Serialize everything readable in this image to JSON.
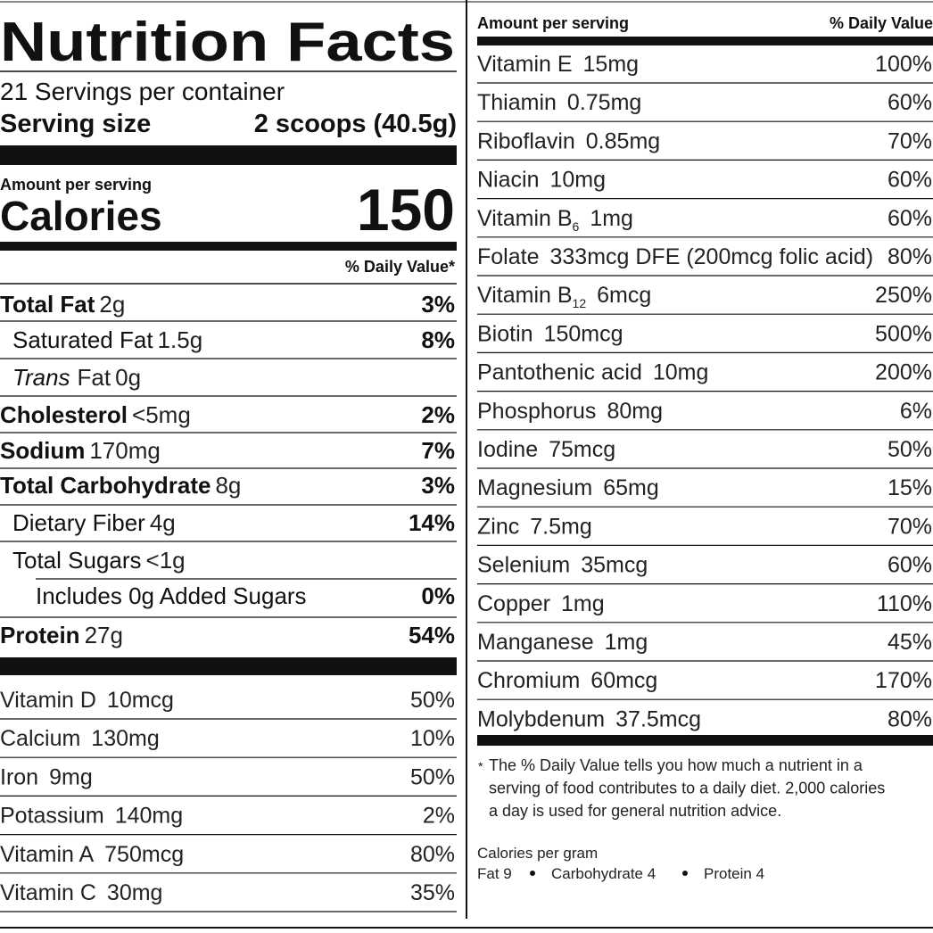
{
  "header": {
    "title": "Nutrition Facts",
    "servings": "21 Servings per container",
    "serving_size_label": "Serving size",
    "serving_size_value": "2 scoops (40.5g)",
    "amount_label": "Amount per serving",
    "calories_label": "Calories",
    "calories_value": "150",
    "dv_header": "% Daily Value*"
  },
  "nutrients": [
    {
      "name": "Total Fat",
      "amount": "2g",
      "dv": "3%"
    },
    {
      "name": "Saturated Fat",
      "amount": "1.5g",
      "dv": "8%"
    },
    {
      "name": "Trans",
      "name_rest": "Fat",
      "amount": "0g"
    },
    {
      "name": "Cholesterol",
      "amount": "<5mg",
      "dv": "2%"
    },
    {
      "name": "Sodium",
      "amount": "170mg",
      "dv": "7%"
    },
    {
      "name": "Total Carbohydrate",
      "amount": "8g",
      "dv": "3%"
    },
    {
      "name": "Dietary Fiber",
      "amount": "4g",
      "dv": "14%"
    },
    {
      "name": "Total Sugars",
      "amount": "<1g"
    },
    {
      "name": "Includes 0g Added Sugars",
      "dv": "0%"
    },
    {
      "name": "Protein",
      "amount": "27g",
      "dv": "54%"
    }
  ],
  "vitamins_left": [
    {
      "name": "Vitamin D",
      "amount": "10mcg",
      "dv": "50%"
    },
    {
      "name": "Calcium",
      "amount": "130mg",
      "dv": "10%"
    },
    {
      "name": "Iron",
      "amount": "9mg",
      "dv": "50%"
    },
    {
      "name": "Potassium",
      "amount": "140mg",
      "dv": "2%"
    },
    {
      "name": "Vitamin A",
      "amount": "750mcg",
      "dv": "80%"
    },
    {
      "name": "Vitamin C",
      "amount": "30mg",
      "dv": "35%"
    }
  ],
  "right_header": {
    "amount_label": "Amount per serving",
    "dv_label": "% Daily Value"
  },
  "vitamins_right": [
    {
      "name": "Vitamin E",
      "amount": "15mg",
      "dv": "100%"
    },
    {
      "name": "Thiamin",
      "amount": "0.75mg",
      "dv": "60%"
    },
    {
      "name": "Riboflavin",
      "amount": "0.85mg",
      "dv": "70%"
    },
    {
      "name": "Niacin",
      "amount": "10mg",
      "dv": "60%"
    },
    {
      "name": "Vitamin B",
      "subscript": "6",
      "amount": "1mg",
      "dv": "60%"
    },
    {
      "name": "Folate",
      "amount": "333mcg DFE (200mcg folic acid)",
      "dv": "80%"
    },
    {
      "name": "Vitamin B",
      "subscript": "12",
      "amount": "6mcg",
      "dv": "250%"
    },
    {
      "name": "Biotin",
      "amount": "150mcg",
      "dv": "500%"
    },
    {
      "name": "Pantothenic acid",
      "amount": "10mg",
      "dv": "200%"
    },
    {
      "name": "Phosphorus",
      "amount": "80mg",
      "dv": "6%"
    },
    {
      "name": "Iodine",
      "amount": "75mcg",
      "dv": "50%"
    },
    {
      "name": "Magnesium",
      "amount": "65mg",
      "dv": "15%"
    },
    {
      "name": "Zinc",
      "amount": "7.5mg",
      "dv": "70%"
    },
    {
      "name": "Selenium",
      "amount": "35mcg",
      "dv": "60%"
    },
    {
      "name": "Copper",
      "amount": "1mg",
      "dv": "110%"
    },
    {
      "name": "Manganese",
      "amount": "1mg",
      "dv": "45%"
    },
    {
      "name": "Chromium",
      "amount": "60mcg",
      "dv": "170%"
    },
    {
      "name": "Molybdenum",
      "amount": "37.5mcg",
      "dv": "80%"
    }
  ],
  "footnote": {
    "marker": "*",
    "lines": [
      "The % Daily Value tells you how much a nutrient in a",
      "serving of food contributes to a daily diet. 2,000 calories",
      "a day is used for general nutrition advice."
    ]
  },
  "calories_per_gram": {
    "label": "Calories per gram",
    "items": [
      "Fat 9",
      "Carbohydrate 4",
      "Protein 4"
    ]
  }
}
